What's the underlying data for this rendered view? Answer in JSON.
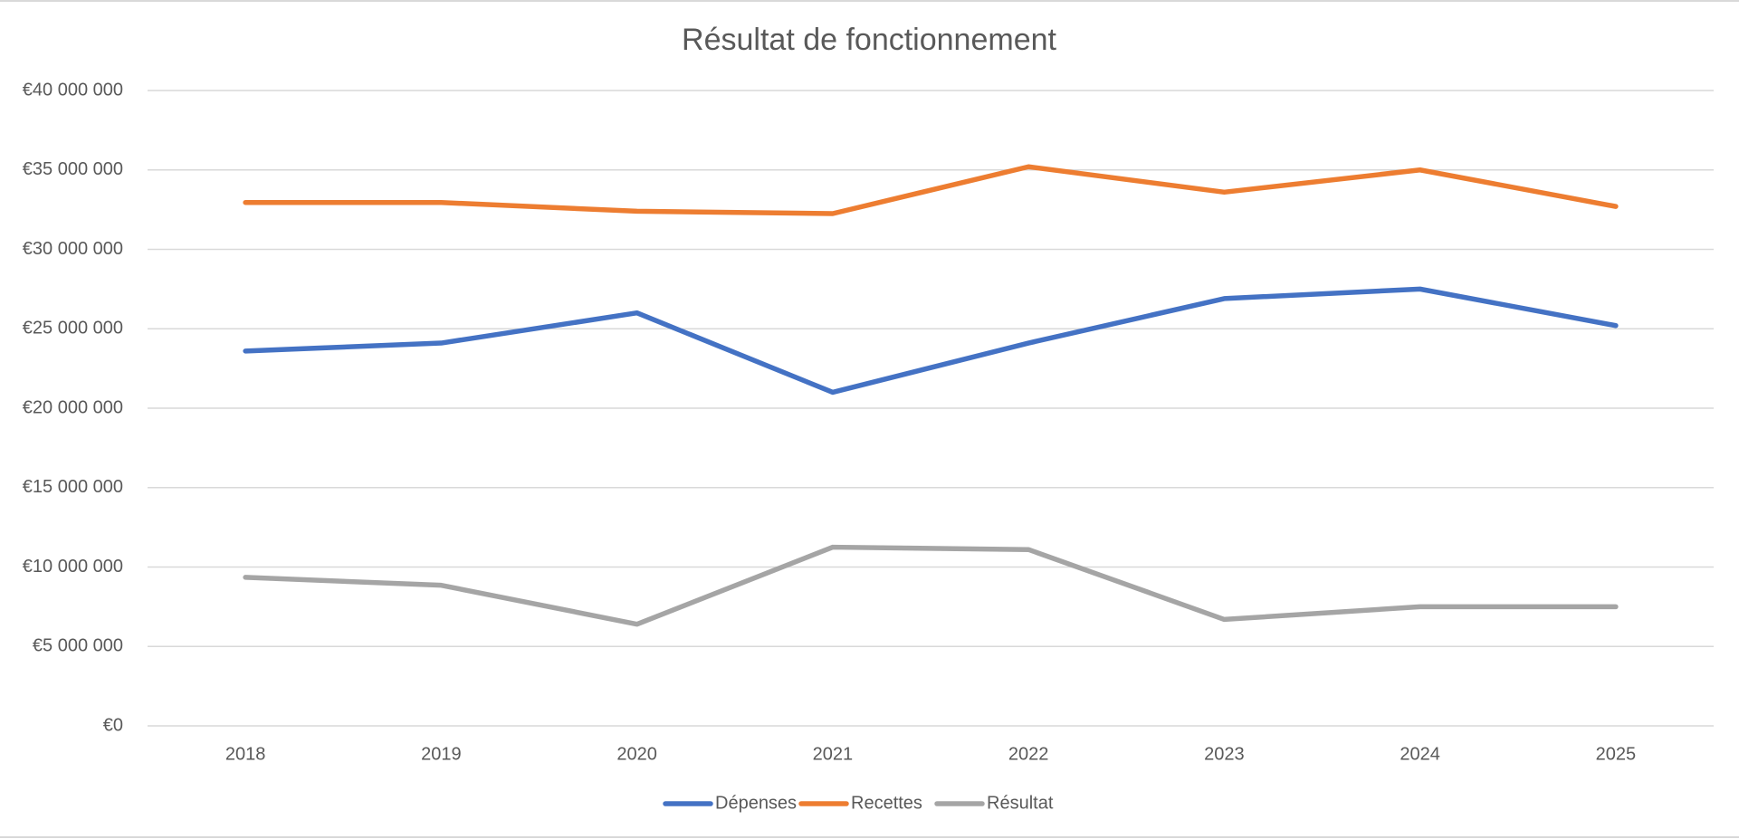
{
  "chart_data": {
    "type": "line",
    "title": "Résultat de fonctionnement",
    "categories": [
      "2018",
      "2019",
      "2020",
      "2021",
      "2022",
      "2023",
      "2024",
      "2025"
    ],
    "series": [
      {
        "name": "Dépenses",
        "color": "#4472c4",
        "values": [
          23600000,
          24100000,
          26000000,
          21000000,
          24100000,
          26900000,
          27500000,
          25200000
        ]
      },
      {
        "name": "Recettes",
        "color": "#ed7d31",
        "values": [
          32950000,
          32950000,
          32400000,
          32250000,
          35200000,
          33600000,
          35000000,
          32700000
        ]
      },
      {
        "name": "Résultat",
        "color": "#a5a5a5",
        "values": [
          9350000,
          8850000,
          6400000,
          11250000,
          11100000,
          6700000,
          7500000,
          7500000
        ]
      }
    ],
    "ylim": [
      0,
      40000000
    ],
    "yticks": [
      {
        "value": 0,
        "label": "€0"
      },
      {
        "value": 5000000,
        "label": "€5 000 000"
      },
      {
        "value": 10000000,
        "label": "€10 000 000"
      },
      {
        "value": 15000000,
        "label": "€15 000 000"
      },
      {
        "value": 20000000,
        "label": "€20 000 000"
      },
      {
        "value": 25000000,
        "label": "€25 000 000"
      },
      {
        "value": 30000000,
        "label": "€30 000 000"
      },
      {
        "value": 35000000,
        "label": "€35 000 000"
      },
      {
        "value": 40000000,
        "label": "€40 000 000"
      }
    ],
    "grid": true,
    "legend": "bottom"
  }
}
